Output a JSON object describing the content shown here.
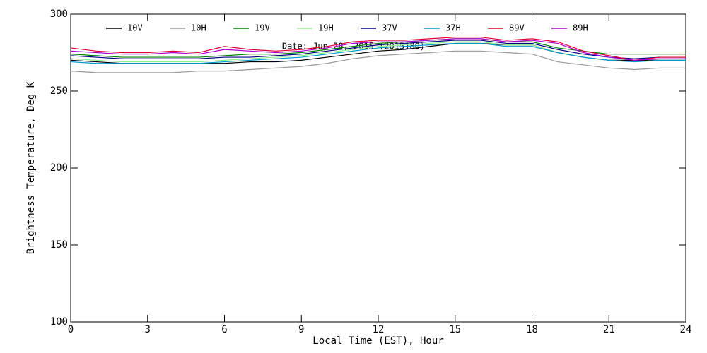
{
  "chart_data": {
    "type": "line",
    "annotation": "Date: Jun 28, 2015 (2015180)",
    "xlabel": "Local Time (EST), Hour",
    "ylabel": "Brightness Temperature, Deg K",
    "x": [
      0,
      1,
      2,
      3,
      4,
      5,
      6,
      7,
      8,
      9,
      10,
      11,
      12,
      13,
      14,
      15,
      16,
      17,
      18,
      19,
      20,
      21,
      22,
      23,
      24
    ],
    "xlim": [
      0,
      24
    ],
    "xticks": [
      0,
      3,
      6,
      9,
      12,
      15,
      18,
      21,
      24
    ],
    "ylim": [
      100,
      300
    ],
    "yticks": [
      100,
      150,
      200,
      250,
      300
    ],
    "series": [
      {
        "name": "10V",
        "color": "#000000",
        "values": [
          270,
          269,
          268,
          268,
          268,
          268,
          268,
          269,
          269,
          270,
          272,
          274,
          276,
          277,
          279,
          281,
          281,
          280,
          280,
          275,
          272,
          270,
          270,
          270,
          270
        ]
      },
      {
        "name": "10H",
        "color": "#999999",
        "values": [
          263,
          262,
          262,
          262,
          262,
          263,
          263,
          264,
          265,
          266,
          268,
          271,
          273,
          274,
          275,
          276,
          276,
          275,
          274,
          269,
          267,
          265,
          264,
          265,
          265
        ]
      },
      {
        "name": "19V",
        "color": "#008000",
        "values": [
          274,
          273,
          272,
          272,
          272,
          272,
          273,
          274,
          274,
          275,
          277,
          279,
          281,
          282,
          283,
          284,
          284,
          282,
          282,
          278,
          276,
          274,
          274,
          274,
          274
        ]
      },
      {
        "name": "19H",
        "color": "#90ee90",
        "values": [
          271,
          270,
          269,
          269,
          269,
          269,
          270,
          271,
          272,
          273,
          275,
          277,
          279,
          280,
          281,
          282,
          282,
          280,
          280,
          275,
          272,
          270,
          269,
          270,
          270
        ]
      },
      {
        "name": "37V",
        "color": "#000080",
        "values": [
          273,
          272,
          271,
          271,
          271,
          271,
          272,
          272,
          273,
          274,
          276,
          278,
          280,
          281,
          282,
          283,
          283,
          281,
          281,
          277,
          274,
          272,
          271,
          272,
          272
        ]
      },
      {
        "name": "37H",
        "color": "#0099cc",
        "values": [
          269,
          268,
          268,
          268,
          268,
          268,
          269,
          270,
          271,
          272,
          274,
          276,
          278,
          279,
          280,
          281,
          281,
          279,
          279,
          275,
          272,
          270,
          269,
          270,
          270
        ]
      },
      {
        "name": "89V",
        "color": "#dd0033",
        "values": [
          278,
          276,
          275,
          275,
          276,
          275,
          279,
          277,
          276,
          277,
          279,
          282,
          283,
          283,
          284,
          285,
          285,
          283,
          284,
          282,
          276,
          273,
          270,
          272,
          272
        ]
      },
      {
        "name": "89H",
        "color": "#aa00cc",
        "values": [
          276,
          275,
          274,
          274,
          275,
          274,
          277,
          276,
          275,
          276,
          278,
          281,
          282,
          282,
          283,
          284,
          284,
          282,
          283,
          281,
          275,
          272,
          270,
          271,
          271
        ]
      }
    ]
  }
}
